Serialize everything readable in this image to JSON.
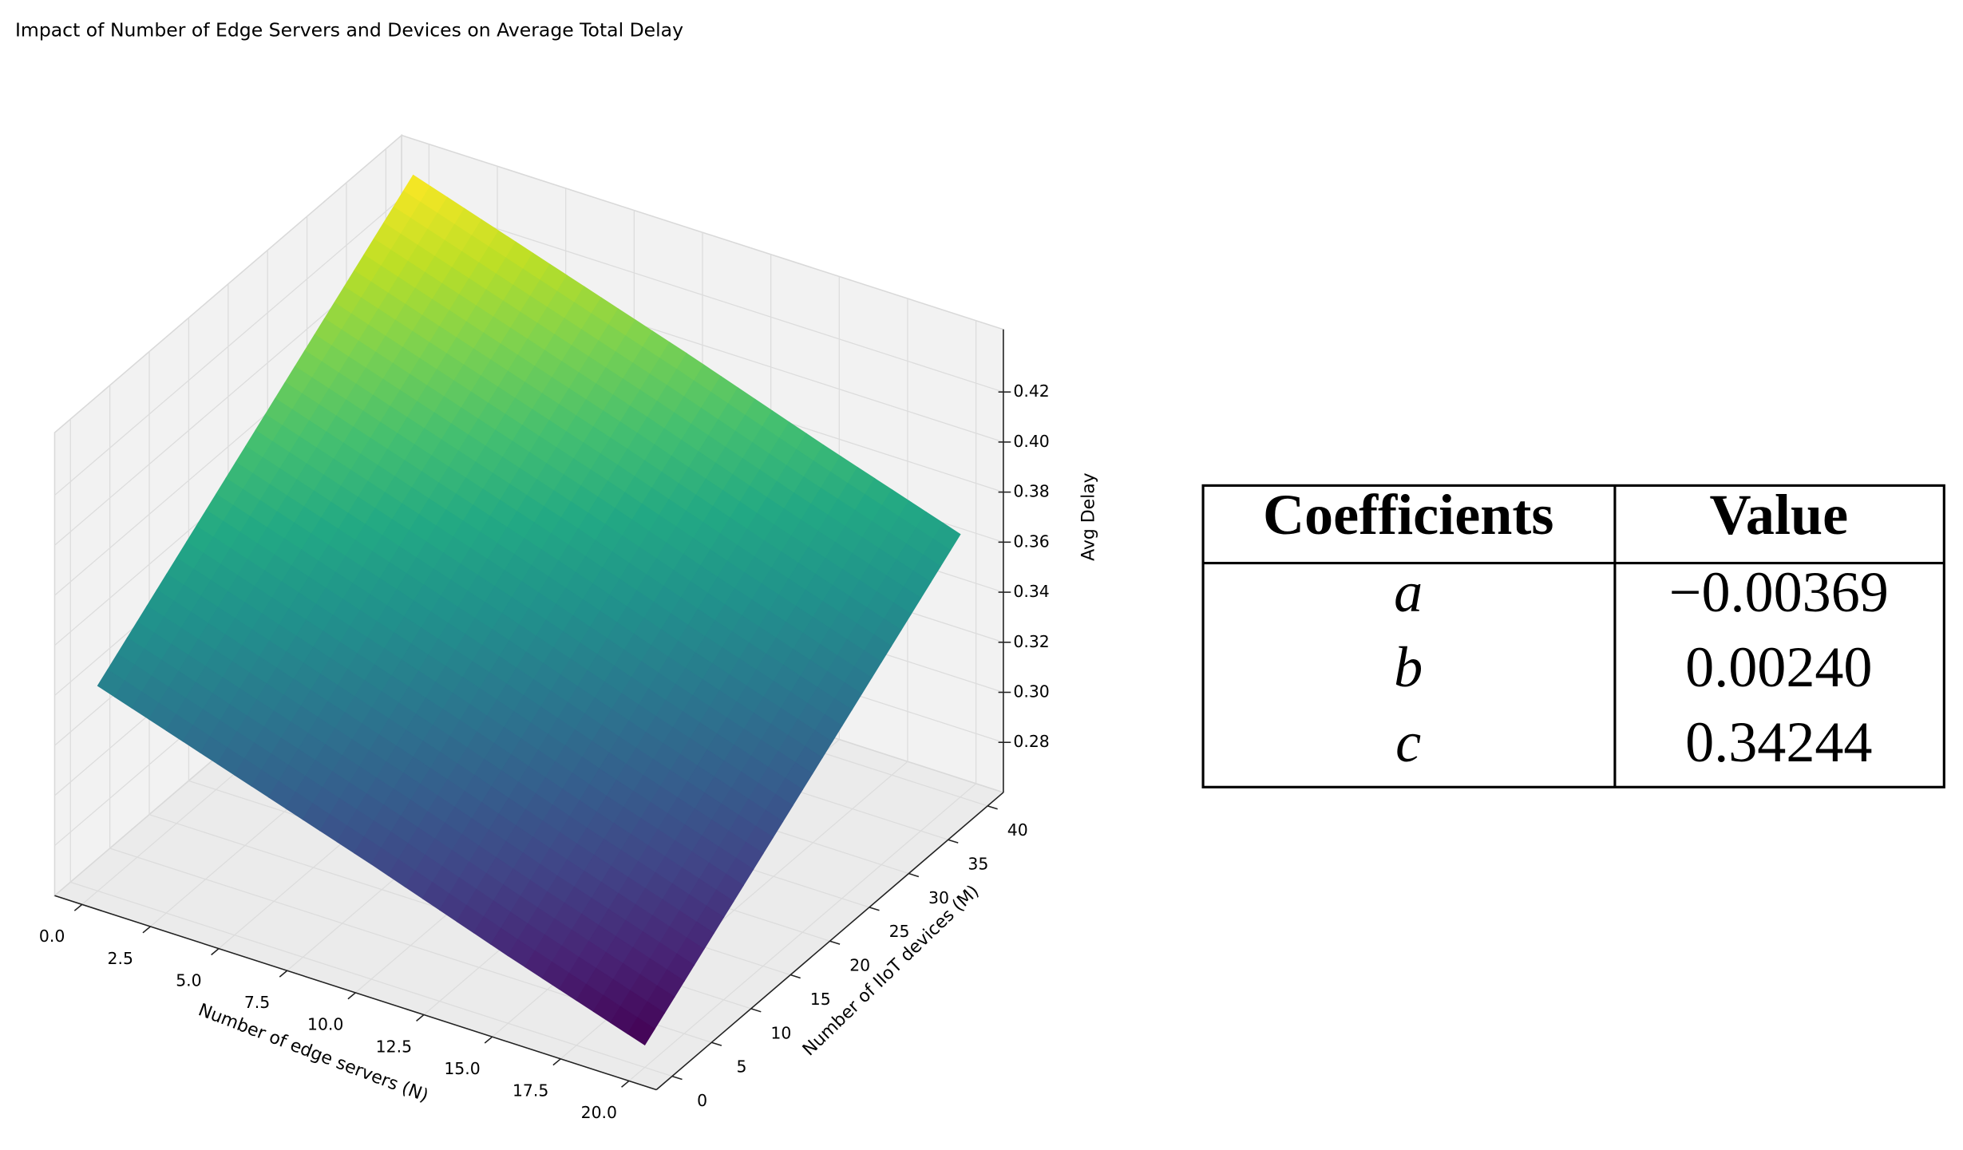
{
  "chart_data": {
    "type": "surface",
    "title": "Impact of Number of Edge Servers and Devices on Average Total Delay",
    "xlabel": "Number of edge servers (N)",
    "ylabel": "Number of IIoT devices (M)",
    "zlabel": "Avg Delay",
    "x": [
      0,
      5,
      10,
      15,
      20
    ],
    "y": [
      0,
      10,
      20,
      30,
      40
    ],
    "z": [
      [
        0.342,
        0.366,
        0.39,
        0.414,
        0.438
      ],
      [
        0.324,
        0.348,
        0.372,
        0.396,
        0.42
      ],
      [
        0.306,
        0.33,
        0.354,
        0.378,
        0.402
      ],
      [
        0.287,
        0.311,
        0.335,
        0.359,
        0.383
      ],
      [
        0.269,
        0.293,
        0.317,
        0.341,
        0.365
      ]
    ],
    "colormap": "viridis",
    "xlim": [
      -1,
      21
    ],
    "ylim": [
      -2,
      42
    ],
    "zlim": [
      0.26,
      0.445
    ],
    "xticks": [
      {
        "value": 0,
        "label": "0.0"
      },
      2.5,
      {
        "value": 5,
        "label": "5.0"
      },
      7.5,
      {
        "value": 10,
        "label": "10.0"
      },
      12.5,
      {
        "value": 15,
        "label": "15.0"
      },
      17.5,
      {
        "value": 20,
        "label": "20.0"
      }
    ],
    "yticks": [
      0,
      5,
      10,
      15,
      20,
      25,
      30,
      35,
      40
    ],
    "zticks": [
      0.28,
      {
        "value": 0.3,
        "label": "0.30"
      },
      0.32,
      0.34,
      0.36,
      0.38,
      {
        "value": 0.4,
        "label": "0.40"
      },
      0.42
    ],
    "grid": true
  },
  "table": {
    "header": [
      "Coefficients",
      "Value"
    ],
    "rows": [
      [
        "a",
        "−0.00369"
      ],
      [
        "b",
        "0.00240"
      ],
      [
        "c",
        "0.34244"
      ]
    ]
  }
}
